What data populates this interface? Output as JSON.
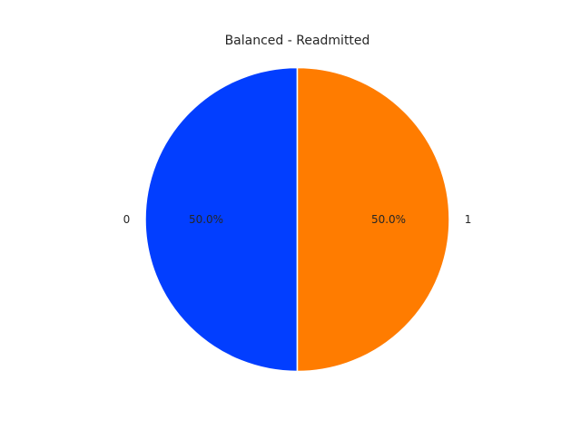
{
  "chart_data": {
    "type": "pie",
    "title": "Balanced - Readmitted",
    "labels": [
      "0",
      "1"
    ],
    "values": [
      50.0,
      50.0
    ],
    "percent_labels": [
      "50.0%",
      "50.0%"
    ],
    "colors": [
      "#023eff",
      "#ff7c00"
    ],
    "start_angle_deg": 90,
    "direction": "counterclockwise",
    "legend": "none"
  }
}
